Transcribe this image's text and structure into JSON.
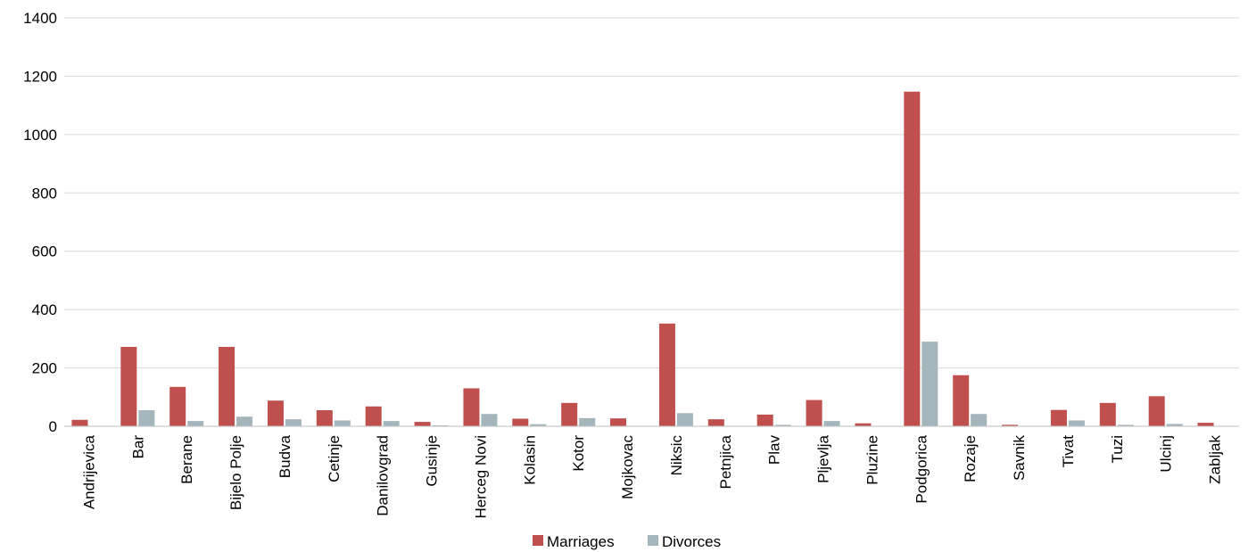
{
  "chart_data": {
    "type": "bar",
    "categories": [
      "Andrijevica",
      "Bar",
      "Berane",
      "Bijelo Polje",
      "Budva",
      "Cetinje",
      "Danilovgrad",
      "Gusinje",
      "Herceg Novi",
      "Kolasin",
      "Kotor",
      "Mojkovac",
      "Niksic",
      "Petnjica",
      "Plav",
      "Pljevlja",
      "Pluzine",
      "Podgorica",
      "Rozaje",
      "Savnik",
      "Tivat",
      "Tuzi",
      "Ulcinj",
      "Zabljak"
    ],
    "series": [
      {
        "name": "Marriages",
        "color": "#c0504d",
        "values": [
          22,
          272,
          135,
          272,
          88,
          55,
          68,
          15,
          130,
          26,
          80,
          27,
          352,
          24,
          40,
          90,
          10,
          1147,
          175,
          5,
          56,
          80,
          103,
          12
        ]
      },
      {
        "name": "Divorces",
        "color": "#a5b5bc",
        "values": [
          0,
          55,
          18,
          33,
          24,
          20,
          18,
          3,
          42,
          7,
          28,
          0,
          45,
          0,
          5,
          18,
          0,
          290,
          42,
          0,
          20,
          5,
          8,
          0
        ]
      }
    ],
    "ylim": [
      0,
      1400
    ],
    "yticks": [
      0,
      200,
      400,
      600,
      800,
      1000,
      1200,
      1400
    ],
    "grid": true,
    "legend": "bottom"
  }
}
